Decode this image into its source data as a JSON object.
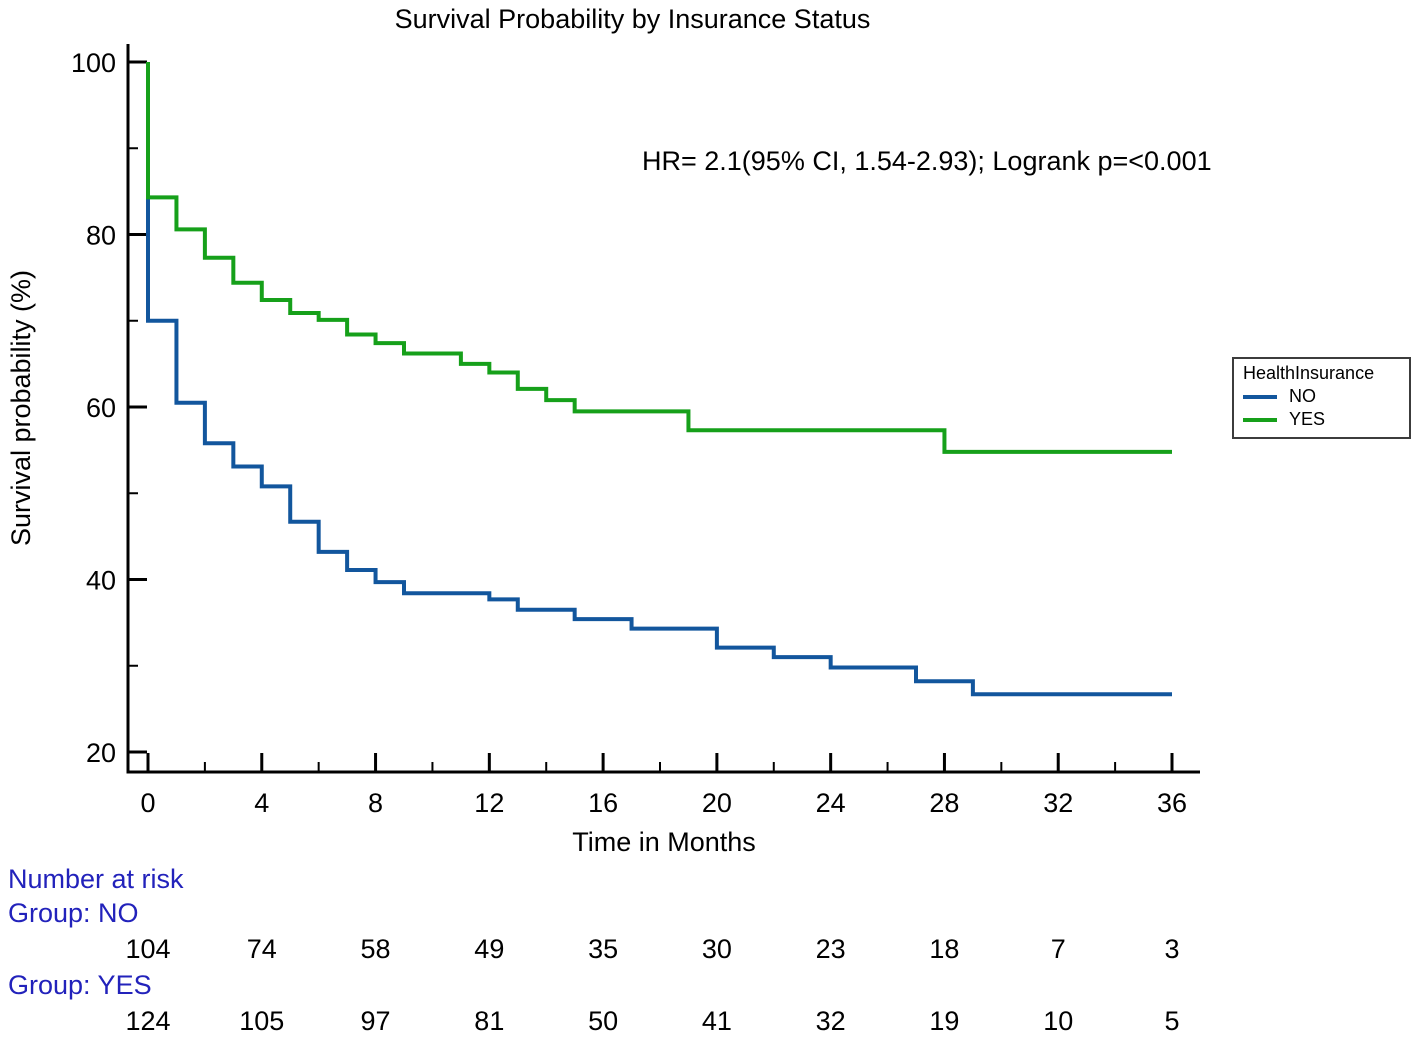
{
  "chart_data": {
    "type": "line",
    "subtype": "kaplan-meier-step",
    "title": "Survival Probability by Insurance Status",
    "annotation": "HR= 2.1(95% CI, 1.54-2.93); Logrank p=<0.001",
    "xlabel": "Time in Months",
    "ylabel": "Survival probability (%)",
    "xlim": [
      0,
      36
    ],
    "ylim": [
      20,
      100
    ],
    "x_ticks": [
      0,
      4,
      8,
      12,
      16,
      20,
      24,
      28,
      32,
      36
    ],
    "x_minor_ticks": [
      2,
      6,
      10,
      14,
      18,
      22,
      26,
      30,
      34
    ],
    "y_ticks": [
      100,
      80,
      60,
      40,
      20
    ],
    "y_minor_ticks": [
      90,
      70,
      50,
      30
    ],
    "grid": false,
    "axis_color": "#000000",
    "legend": {
      "title": "HealthInsurance",
      "position": "right",
      "entries": [
        "NO",
        "YES"
      ]
    },
    "series": [
      {
        "name": "NO",
        "color": "#12569d",
        "points": [
          [
            0,
            100
          ],
          [
            0,
            70
          ],
          [
            1,
            60.5
          ],
          [
            2,
            55.8
          ],
          [
            3,
            53.1
          ],
          [
            4,
            50.8
          ],
          [
            5,
            46.7
          ],
          [
            6,
            43.2
          ],
          [
            7,
            41.1
          ],
          [
            8,
            39.7
          ],
          [
            9,
            38.4
          ],
          [
            12,
            37.7
          ],
          [
            13,
            36.5
          ],
          [
            15,
            35.4
          ],
          [
            17,
            34.3
          ],
          [
            20,
            32.1
          ],
          [
            22,
            31.0
          ],
          [
            24,
            29.8
          ],
          [
            27,
            28.2
          ],
          [
            29,
            26.7
          ],
          [
            36,
            26.7
          ]
        ]
      },
      {
        "name": "YES",
        "color": "#16a01a",
        "points": [
          [
            0,
            100
          ],
          [
            0,
            84.3
          ],
          [
            1,
            80.6
          ],
          [
            2,
            77.3
          ],
          [
            3,
            74.4
          ],
          [
            4,
            72.4
          ],
          [
            5,
            70.9
          ],
          [
            6,
            70.1
          ],
          [
            7,
            68.4
          ],
          [
            8,
            67.4
          ],
          [
            9,
            66.2
          ],
          [
            11,
            65.0
          ],
          [
            12,
            64.0
          ],
          [
            13,
            62.1
          ],
          [
            14,
            60.8
          ],
          [
            15,
            59.5
          ],
          [
            19,
            57.3
          ],
          [
            28,
            54.8
          ],
          [
            36,
            54.8
          ]
        ]
      }
    ]
  },
  "risk_table": {
    "header": "Number at risk",
    "label_color": "#2222bb",
    "times": [
      0,
      4,
      8,
      12,
      16,
      20,
      24,
      28,
      32,
      36
    ],
    "groups": [
      {
        "label": "Group: NO",
        "counts": [
          104,
          74,
          58,
          49,
          35,
          30,
          23,
          18,
          7,
          3
        ]
      },
      {
        "label": "Group: YES",
        "counts": [
          124,
          105,
          97,
          81,
          50,
          41,
          32,
          19,
          10,
          5
        ]
      }
    ]
  }
}
